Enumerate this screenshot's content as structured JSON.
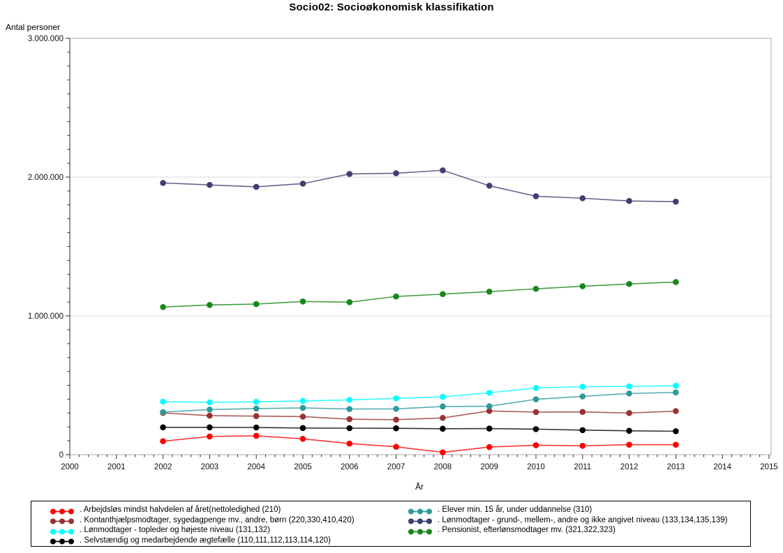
{
  "chart_data": {
    "type": "line",
    "title": "Socio02: Socioøkonomisk klassifikation",
    "xlabel": "År",
    "ylabel": "Antal personer",
    "x": [
      2002,
      2003,
      2004,
      2005,
      2006,
      2007,
      2008,
      2009,
      2010,
      2011,
      2012,
      2013
    ],
    "xlim": [
      2000,
      2015
    ],
    "ylim": [
      0,
      3000000
    ],
    "x_major_ticks": [
      2000,
      2001,
      2002,
      2003,
      2004,
      2005,
      2006,
      2007,
      2008,
      2009,
      2010,
      2011,
      2012,
      2013,
      2014,
      2015
    ],
    "x_minor_divisions": 5,
    "y_major_ticks": [
      0,
      1000000,
      2000000,
      3000000
    ],
    "y_tick_labels": [
      "0",
      "1.000.000",
      "2.000.000",
      "3.000.000"
    ],
    "y_minor_step": 100000,
    "grid": "horizontal-major",
    "legend_position": "bottom",
    "series": [
      {
        "name": ". Arbejdsløs mindst halvdelen af året(nettoledighed (210)",
        "color": "#FF0000",
        "values": [
          97000,
          131000,
          136000,
          114000,
          80000,
          57000,
          17000,
          55000,
          68000,
          64000,
          72000,
          72000
        ]
      },
      {
        "name": ". Kontanthjælpsmodtager, sygedagpenge mv., andre, børn (220,330,410,420)",
        "color": "#993333",
        "values": [
          301000,
          281000,
          278000,
          274000,
          256000,
          252000,
          265000,
          315000,
          307000,
          308000,
          300000,
          314000
        ]
      },
      {
        "name": ". Lønmodtager - topleder og højeste niveau (131,132)",
        "color": "#00FFFF",
        "values": [
          382000,
          377000,
          381000,
          387000,
          395000,
          406000,
          417000,
          446000,
          481000,
          490000,
          492000,
          497000
        ]
      },
      {
        "name": ". Selvstændig og medarbejdende ægtefælle (110,111,112,113,114,120)",
        "color": "#000000",
        "values": [
          197000,
          197000,
          196000,
          192000,
          191000,
          190000,
          187000,
          188000,
          184000,
          177000,
          172000,
          169000
        ]
      },
      {
        "name": ". Elever min. 15 år, under uddannelse (310)",
        "color": "#2E9999",
        "values": [
          307000,
          325000,
          332000,
          337000,
          329000,
          330000,
          347000,
          349000,
          399000,
          420000,
          441000,
          449000
        ]
      },
      {
        "name": ". Lønmodtager - grund-, mellem-, andre og ikke angivet niveau (133,134,135,139)",
        "color": "#3F3F73",
        "values": [
          1958000,
          1944000,
          1930000,
          1953000,
          2023000,
          2028000,
          2049000,
          1938000,
          1862000,
          1848000,
          1828000,
          1823000
        ]
      },
      {
        "name": ". Pensionist, efterlønsmodtager mv. (321,322,323)",
        "color": "#178717",
        "values": [
          1064000,
          1079000,
          1085000,
          1104000,
          1099000,
          1140000,
          1157000,
          1175000,
          1195000,
          1214000,
          1230000,
          1244000
        ]
      }
    ],
    "legend_columns": [
      [
        0,
        1,
        2,
        3
      ],
      [
        4,
        5,
        6
      ]
    ]
  }
}
